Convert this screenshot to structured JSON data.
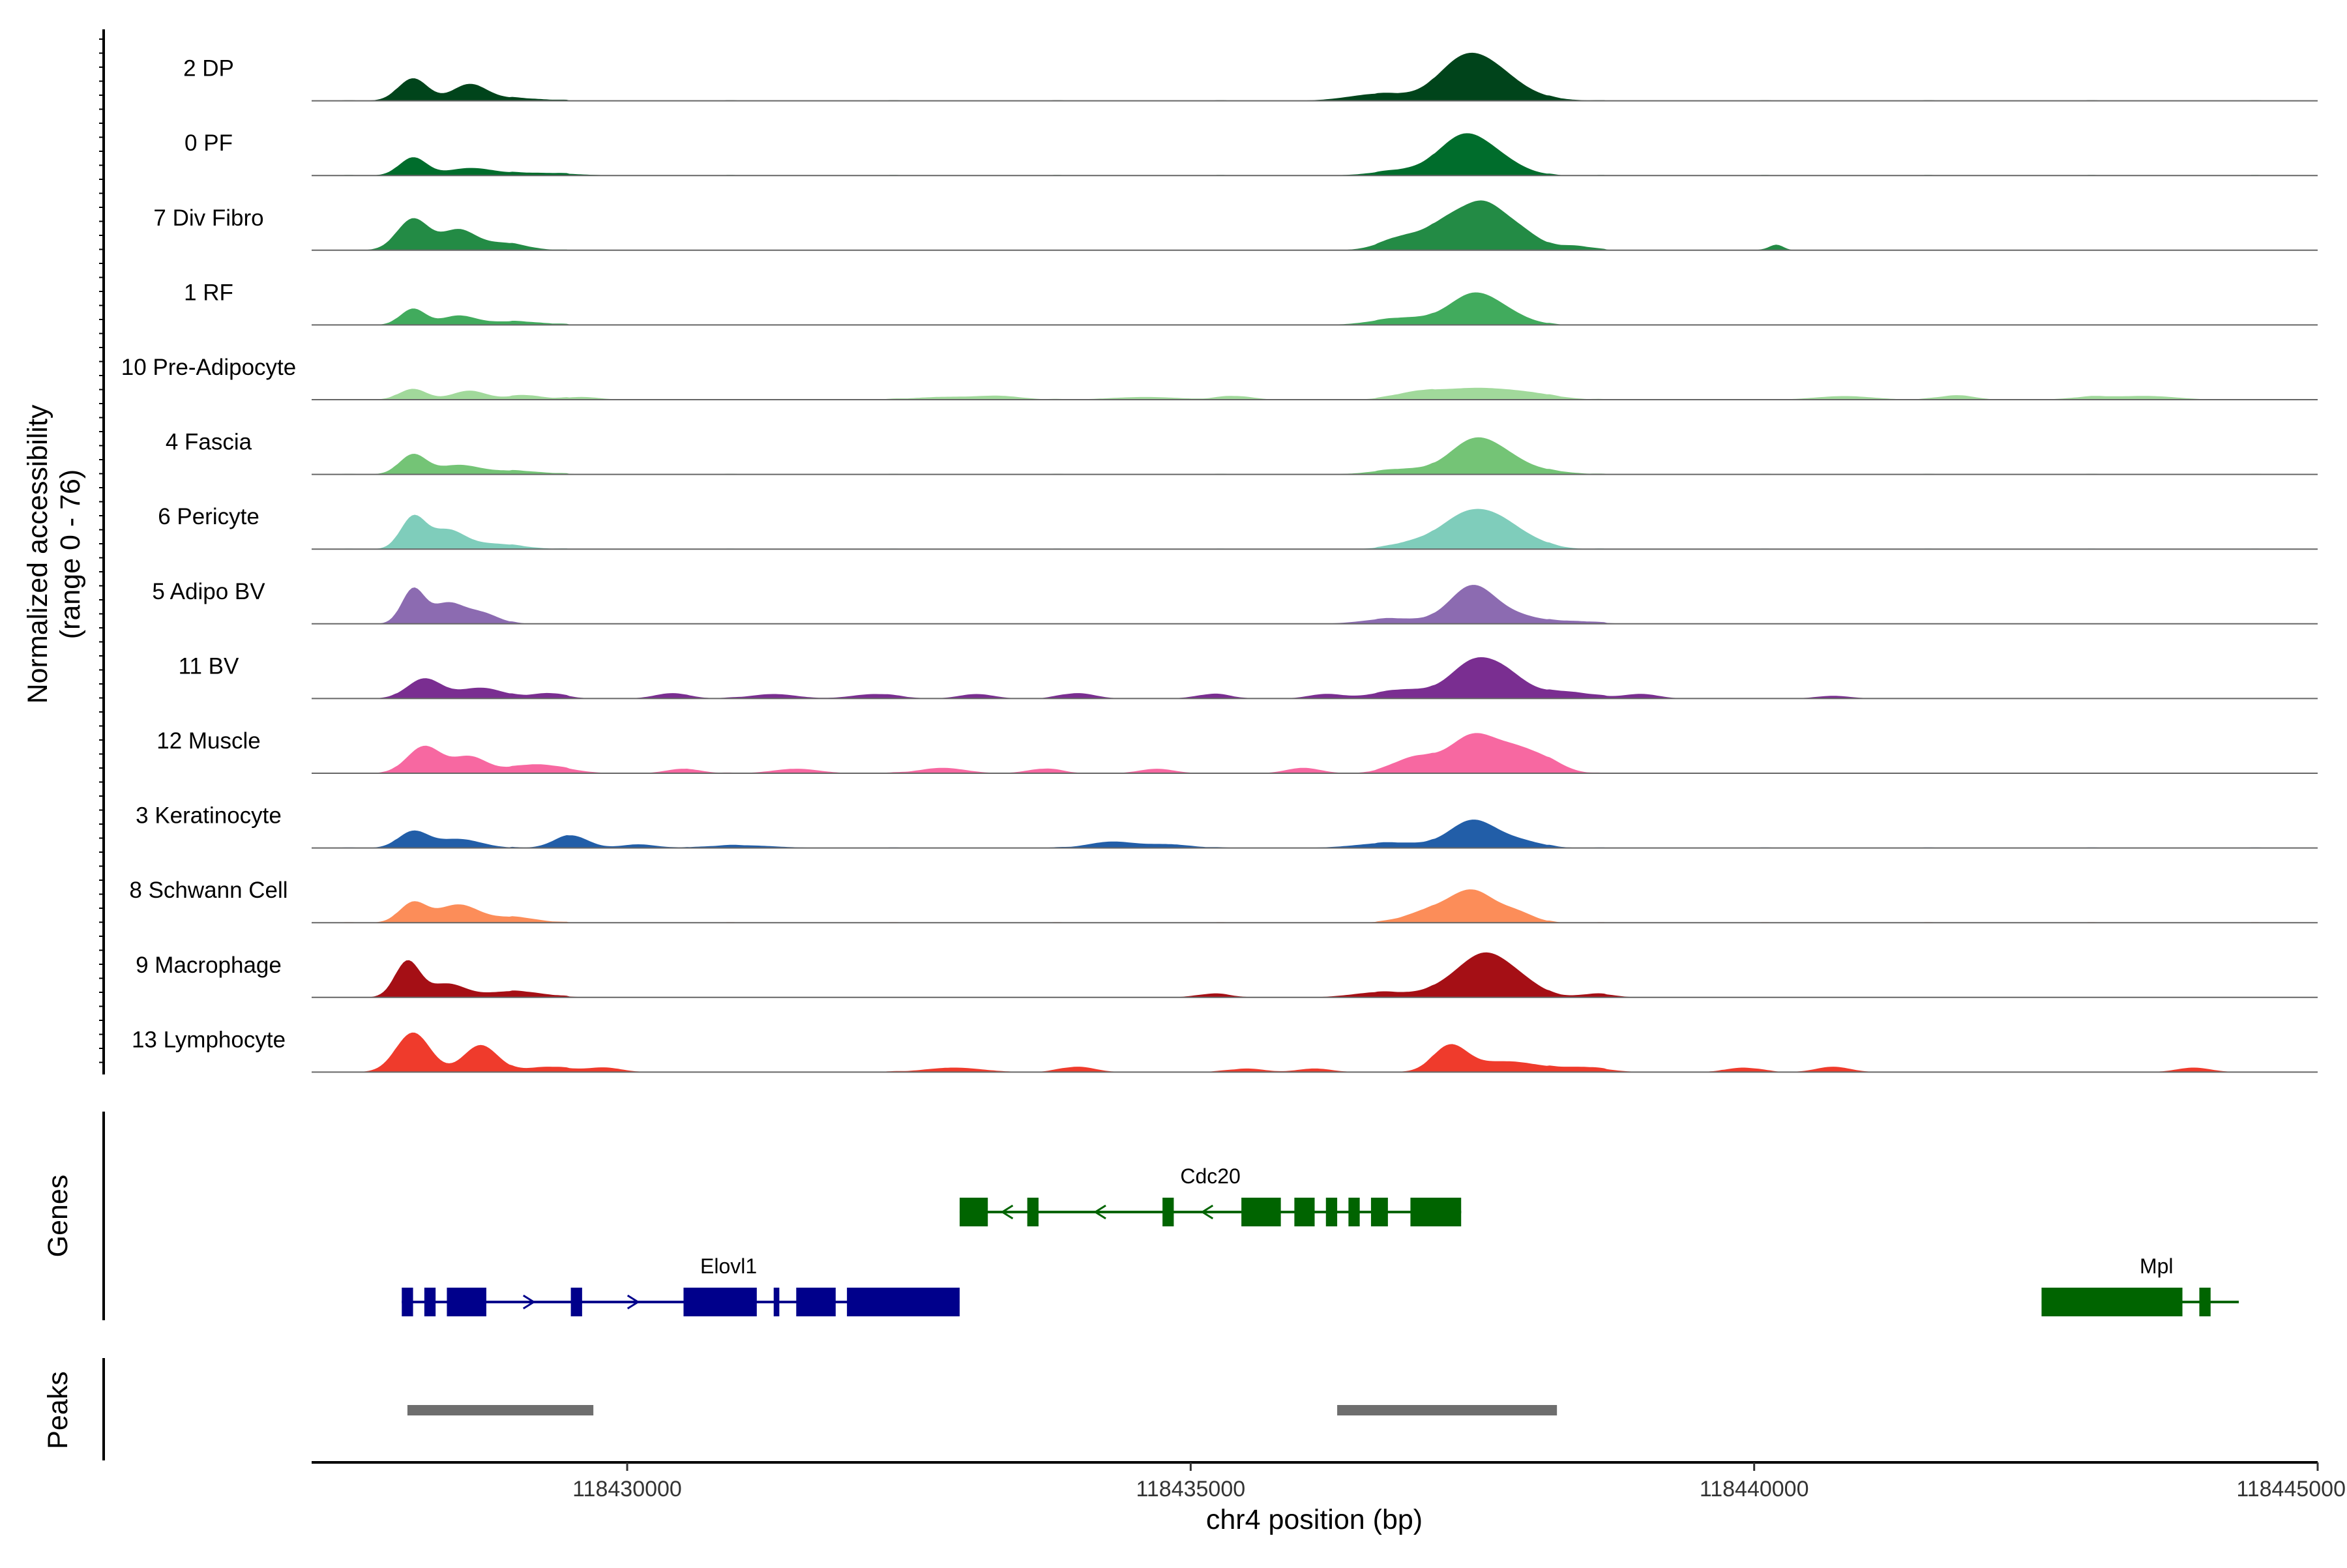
{
  "chart_data": {
    "type": "area",
    "title": "",
    "chromosome": "chr4",
    "xlabel": "chr4 position (bp)",
    "ylabel_line1": "Normalized accessibility",
    "ylabel_line2": "(range 0 - 76)",
    "y_range": [
      0,
      76
    ],
    "xlim": [
      118427200,
      118445000
    ],
    "x_ticks": [
      118430000,
      118435000,
      118440000,
      118445000
    ],
    "x_tick_labels": [
      "118430000",
      "118435000",
      "118440000",
      "118445000"
    ],
    "tracks": [
      {
        "name": "2 DP",
        "color": "#00441b",
        "peaks": [
          [
            118428100,
            25,
            130
          ],
          [
            118428600,
            18,
            150
          ],
          [
            118429000,
            3,
            250
          ],
          [
            118436700,
            8,
            280
          ],
          [
            118437400,
            40,
            220
          ],
          [
            118437700,
            25,
            220
          ],
          [
            118438000,
            4,
            250
          ]
        ]
      },
      {
        "name": "0 PF",
        "color": "#006d2c",
        "peaks": [
          [
            118428100,
            20,
            120
          ],
          [
            118428600,
            8,
            200
          ],
          [
            118429200,
            3,
            300
          ],
          [
            118436900,
            6,
            250
          ],
          [
            118437400,
            38,
            210
          ],
          [
            118437700,
            18,
            220
          ]
        ]
      },
      {
        "name": "7 Div Fibro",
        "color": "#238b45",
        "peaks": [
          [
            118428100,
            35,
            140
          ],
          [
            118428500,
            22,
            150
          ],
          [
            118428900,
            8,
            200
          ],
          [
            118436900,
            15,
            200
          ],
          [
            118437300,
            30,
            180
          ],
          [
            118437600,
            42,
            170
          ],
          [
            118437900,
            22,
            180
          ],
          [
            118438400,
            5,
            150
          ],
          [
            118440200,
            6,
            60
          ]
        ]
      },
      {
        "name": "1 RF",
        "color": "#41ab5d",
        "peaks": [
          [
            118428100,
            18,
            110
          ],
          [
            118428500,
            10,
            150
          ],
          [
            118429000,
            4,
            250
          ],
          [
            118436900,
            8,
            260
          ],
          [
            118437500,
            32,
            210
          ],
          [
            118437800,
            10,
            200
          ]
        ]
      },
      {
        "name": "10 Pre-Adipocyte",
        "color": "#a1d99b",
        "peaks": [
          [
            118428100,
            12,
            120
          ],
          [
            118428600,
            10,
            150
          ],
          [
            118429100,
            5,
            150
          ],
          [
            118429600,
            3,
            150
          ],
          [
            118432800,
            3,
            250
          ],
          [
            118433300,
            4,
            200
          ],
          [
            118434600,
            3,
            300
          ],
          [
            118435400,
            4,
            150
          ],
          [
            118437000,
            7,
            200
          ],
          [
            118437500,
            12,
            300
          ],
          [
            118438000,
            6,
            250
          ],
          [
            118440800,
            4,
            250
          ],
          [
            118441800,
            5,
            150
          ],
          [
            118443000,
            3,
            200
          ],
          [
            118443500,
            4,
            250
          ]
        ]
      },
      {
        "name": "4 Fascia",
        "color": "#74c476",
        "peaks": [
          [
            118428100,
            22,
            120
          ],
          [
            118428500,
            10,
            180
          ],
          [
            118429000,
            4,
            250
          ],
          [
            118436900,
            6,
            250
          ],
          [
            118437500,
            35,
            210
          ],
          [
            118437800,
            15,
            200
          ],
          [
            118438200,
            3,
            200
          ]
        ]
      },
      {
        "name": "6 Pericyte",
        "color": "#7fcdbb",
        "peaks": [
          [
            118428100,
            35,
            110
          ],
          [
            118428400,
            20,
            150
          ],
          [
            118428800,
            6,
            250
          ],
          [
            118437000,
            8,
            200
          ],
          [
            118437400,
            30,
            200
          ],
          [
            118437700,
            28,
            200
          ],
          [
            118438000,
            8,
            200
          ]
        ]
      },
      {
        "name": "5 Adipo BV",
        "color": "#8c6bb1",
        "peaks": [
          [
            118428100,
            38,
            100
          ],
          [
            118428400,
            22,
            140
          ],
          [
            118428700,
            12,
            150
          ],
          [
            118436800,
            6,
            250
          ],
          [
            118437500,
            42,
            200
          ],
          [
            118437900,
            8,
            200
          ],
          [
            118438400,
            3,
            200
          ]
        ]
      },
      {
        "name": "11 BV",
        "color": "#7a2e91",
        "peaks": [
          [
            118428200,
            22,
            150
          ],
          [
            118428700,
            12,
            200
          ],
          [
            118429300,
            6,
            150
          ],
          [
            118430400,
            6,
            150
          ],
          [
            118431300,
            5,
            200
          ],
          [
            118432200,
            5,
            200
          ],
          [
            118433100,
            5,
            150
          ],
          [
            118434000,
            6,
            150
          ],
          [
            118435200,
            5,
            150
          ],
          [
            118436200,
            5,
            150
          ],
          [
            118436900,
            10,
            250
          ],
          [
            118437500,
            38,
            200
          ],
          [
            118437800,
            22,
            180
          ],
          [
            118438300,
            8,
            250
          ],
          [
            118439000,
            5,
            150
          ],
          [
            118440700,
            3,
            150
          ]
        ]
      },
      {
        "name": "12 Muscle",
        "color": "#f768a1",
        "peaks": [
          [
            118428200,
            30,
            150
          ],
          [
            118428600,
            18,
            150
          ],
          [
            118429200,
            10,
            250
          ],
          [
            118430500,
            5,
            150
          ],
          [
            118431500,
            5,
            200
          ],
          [
            118432800,
            6,
            200
          ],
          [
            118433700,
            5,
            150
          ],
          [
            118434700,
            5,
            150
          ],
          [
            118436000,
            6,
            150
          ],
          [
            118437000,
            18,
            200
          ],
          [
            118437500,
            40,
            200
          ],
          [
            118437900,
            25,
            200
          ],
          [
            118438200,
            8,
            150
          ]
        ]
      },
      {
        "name": "3 Keratinocyte",
        "color": "#225ea8",
        "peaks": [
          [
            118428100,
            18,
            130
          ],
          [
            118428500,
            10,
            200
          ],
          [
            118429500,
            14,
            150
          ],
          [
            118430100,
            4,
            150
          ],
          [
            118431000,
            3,
            300
          ],
          [
            118434300,
            7,
            200
          ],
          [
            118434800,
            4,
            200
          ],
          [
            118436800,
            6,
            300
          ],
          [
            118437500,
            30,
            200
          ],
          [
            118437900,
            8,
            200
          ]
        ]
      },
      {
        "name": "8 Schwann Cell",
        "color": "#fc8d59",
        "peaks": [
          [
            118428100,
            22,
            120
          ],
          [
            118428500,
            20,
            180
          ],
          [
            118429000,
            6,
            200
          ],
          [
            118437100,
            12,
            200
          ],
          [
            118437500,
            35,
            200
          ],
          [
            118437900,
            10,
            150
          ]
        ]
      },
      {
        "name": "9 Macrophage",
        "color": "#a50f15",
        "peaks": [
          [
            118428050,
            40,
            110
          ],
          [
            118428400,
            15,
            160
          ],
          [
            118429000,
            7,
            250
          ],
          [
            118435200,
            4,
            150
          ],
          [
            118436700,
            6,
            250
          ],
          [
            118437300,
            12,
            200
          ],
          [
            118437600,
            40,
            200
          ],
          [
            118437900,
            18,
            200
          ],
          [
            118438600,
            4,
            150
          ]
        ]
      },
      {
        "name": "13 Lymphocyte",
        "color": "#ef3b2c",
        "peaks": [
          [
            118428100,
            44,
            150
          ],
          [
            118428700,
            30,
            150
          ],
          [
            118429300,
            6,
            200
          ],
          [
            118429800,
            5,
            150
          ],
          [
            118432900,
            5,
            250
          ],
          [
            118434000,
            6,
            150
          ],
          [
            118435500,
            4,
            150
          ],
          [
            118436100,
            4,
            150
          ],
          [
            118437300,
            28,
            150
          ],
          [
            118437800,
            12,
            300
          ],
          [
            118438500,
            5,
            200
          ],
          [
            118439900,
            5,
            150
          ],
          [
            118440700,
            6,
            150
          ],
          [
            118443900,
            5,
            150
          ]
        ]
      }
    ],
    "genes_title": "Genes",
    "genes": [
      {
        "name": "Cdc20",
        "strand": "-",
        "color": "#006400",
        "start": 118432950,
        "end": 118437400,
        "exons": [
          [
            118432950,
            118433200
          ],
          [
            118433550,
            118433650
          ],
          [
            118434750,
            118434850
          ],
          [
            118435450,
            118435800
          ],
          [
            118435920,
            118436100
          ],
          [
            118436200,
            118436300
          ],
          [
            118436400,
            118436500
          ],
          [
            118436600,
            118436750
          ],
          [
            118436950,
            118437400
          ]
        ]
      },
      {
        "name": "Elovl1",
        "strand": "+",
        "color": "#00008b",
        "start": 118428000,
        "end": 118432950,
        "exons": [
          [
            118428000,
            118428100
          ],
          [
            118428200,
            118428300
          ],
          [
            118428400,
            118428750
          ],
          [
            118429500,
            118429600
          ],
          [
            118430500,
            118431150
          ],
          [
            118431300,
            118431350
          ],
          [
            118431500,
            118431850
          ],
          [
            118431950,
            118432950
          ]
        ]
      },
      {
        "name": "Mpl",
        "strand": "+",
        "color": "#006400",
        "start": 118442550,
        "end": 118444300,
        "exons": [
          [
            118442550,
            118443800
          ],
          [
            118443950,
            118444050
          ]
        ]
      }
    ],
    "peaks_title": "Peaks",
    "peak_regions": [
      [
        118428050,
        118429700
      ],
      [
        118436300,
        118438250
      ]
    ]
  }
}
